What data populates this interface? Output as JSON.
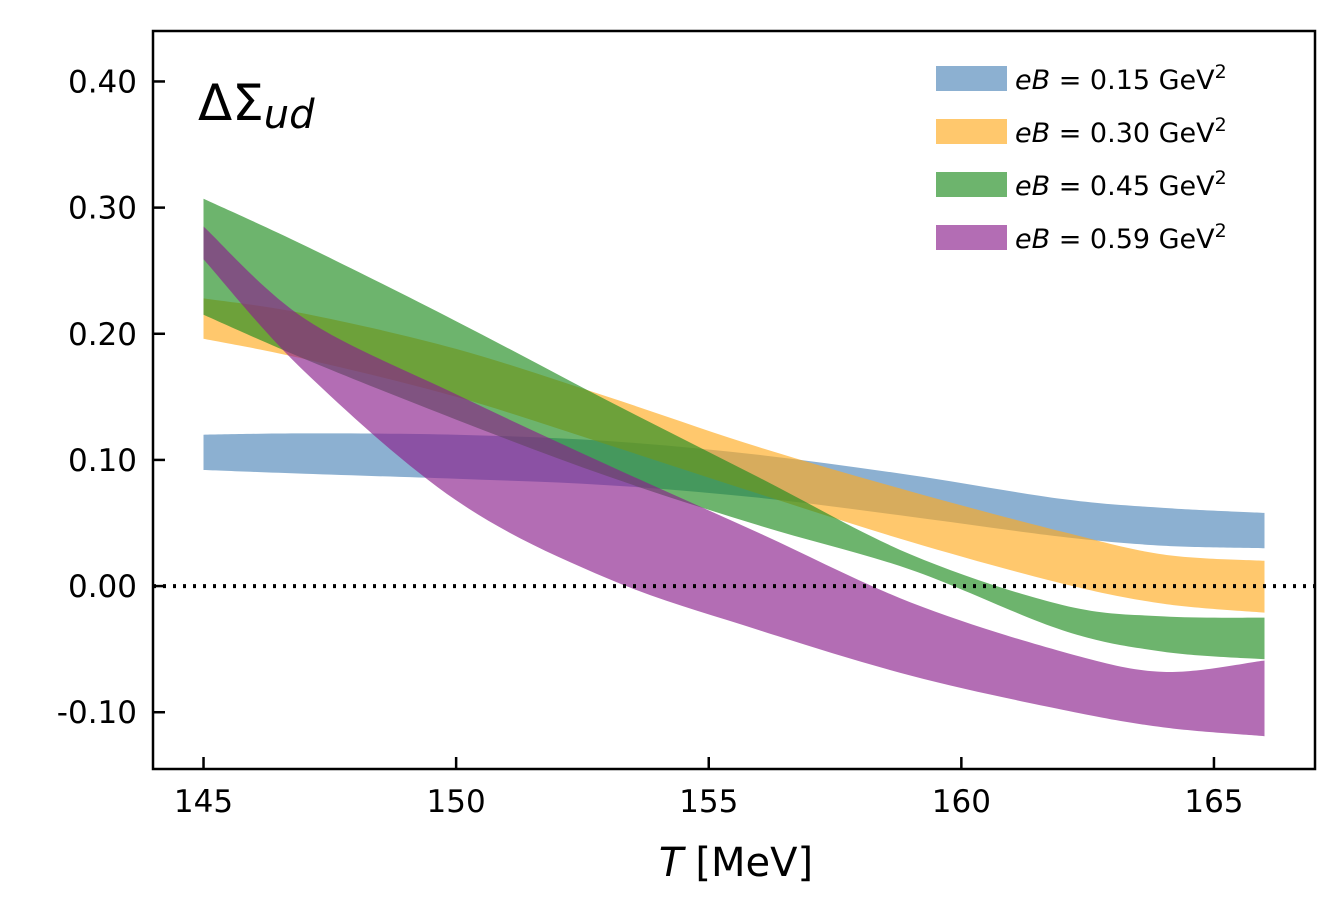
{
  "chart_data": {
    "type": "area",
    "panel_label": {
      "main": "ΔΣ",
      "sub": "ud"
    },
    "xlabel": {
      "symbol": "T",
      "unit": "[MeV]"
    },
    "xlim": [
      144,
      167
    ],
    "ylim": [
      -0.145,
      0.44
    ],
    "xticks": [
      145,
      150,
      155,
      160,
      165
    ],
    "xtick_labels": [
      "145",
      "150",
      "155",
      "160",
      "165"
    ],
    "yticks": [
      -0.1,
      0.0,
      0.1,
      0.2,
      0.3,
      0.4
    ],
    "ytick_labels": [
      "-0.10",
      "0.00",
      "0.10",
      "0.20",
      "0.30",
      "0.40"
    ],
    "reference_line": {
      "y": 0.0,
      "style": "dotted"
    },
    "legend_position": "top-right",
    "series": [
      {
        "name": "eB = 0.15 GeV2",
        "label_parts": {
          "var": "eB",
          "eq": " = 0.15 GeV",
          "sup": "2"
        },
        "color": "#4f86b8",
        "x": [
          145,
          147,
          150,
          153,
          156,
          159,
          162,
          164,
          166
        ],
        "lower": [
          0.092,
          0.089,
          0.085,
          0.08,
          0.07,
          0.055,
          0.039,
          0.032,
          0.03
        ],
        "upper": [
          0.12,
          0.121,
          0.12,
          0.115,
          0.104,
          0.088,
          0.069,
          0.062,
          0.058
        ]
      },
      {
        "name": "eB = 0.30 GeV2",
        "label_parts": {
          "var": "eB",
          "eq": " = 0.30 GeV",
          "sup": "2"
        },
        "color": "#ffab1e",
        "x": [
          145,
          147,
          150,
          153,
          156,
          159,
          162,
          164,
          166
        ],
        "lower": [
          0.196,
          0.18,
          0.15,
          0.112,
          0.073,
          0.035,
          0.002,
          -0.014,
          -0.021
        ],
        "upper": [
          0.228,
          0.216,
          0.188,
          0.15,
          0.11,
          0.075,
          0.043,
          0.025,
          0.02
        ]
      },
      {
        "name": "eB = 0.45 GeV2",
        "label_parts": {
          "var": "eB",
          "eq": " = 0.45 GeV",
          "sup": "2"
        },
        "color": "#1e8c1e",
        "x": [
          145,
          147,
          150,
          153,
          156,
          159,
          162,
          164,
          166
        ],
        "lower": [
          0.215,
          0.18,
          0.132,
          0.087,
          0.048,
          0.013,
          -0.035,
          -0.052,
          -0.058
        ],
        "upper": [
          0.307,
          0.27,
          0.21,
          0.147,
          0.086,
          0.025,
          -0.015,
          -0.024,
          -0.025
        ]
      },
      {
        "name": "eB = 0.59 GeV2",
        "label_parts": {
          "var": "eB",
          "eq": " = 0.59 GeV",
          "sup": "2"
        },
        "color": "#8b1e8c",
        "x": [
          145,
          147,
          150,
          153,
          156,
          159,
          162,
          164,
          166
        ],
        "lower": [
          0.259,
          0.17,
          0.068,
          0.006,
          -0.035,
          -0.071,
          -0.098,
          -0.112,
          -0.119
        ],
        "upper": [
          0.285,
          0.212,
          0.152,
          0.096,
          0.042,
          -0.013,
          -0.052,
          -0.068,
          -0.059
        ]
      }
    ]
  }
}
